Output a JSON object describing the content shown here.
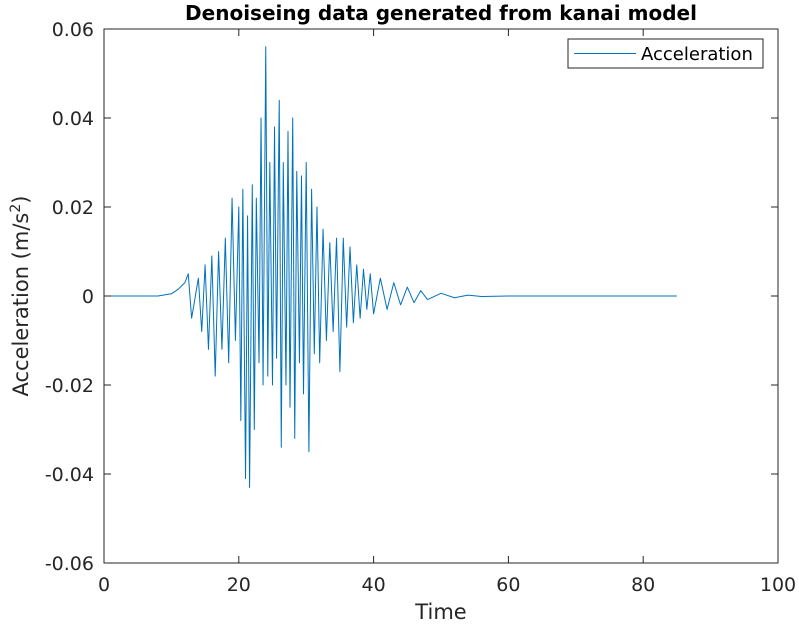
{
  "chart_data": {
    "type": "line",
    "title": "Denoiseing data generated from kanai model",
    "xlabel": "Time",
    "ylabel_main": "Acceleration (m/s",
    "ylabel_sup": "2",
    "ylabel_close": ")",
    "xlim": [
      0,
      100
    ],
    "ylim": [
      -0.06,
      0.06
    ],
    "xticks": [
      0,
      20,
      40,
      60,
      80,
      100
    ],
    "yticks": [
      -0.06,
      -0.04,
      -0.02,
      0,
      0.02,
      0.04,
      0.06
    ],
    "xtick_labels": [
      "0",
      "20",
      "40",
      "60",
      "80",
      "100"
    ],
    "ytick_labels": [
      "-0.06",
      "-0.04",
      "-0.02",
      "0",
      "0.02",
      "0.04",
      "0.06"
    ],
    "grid": false,
    "legend_position": "top-right",
    "series": [
      {
        "name": "Acceleration",
        "color": "#0072BD",
        "x": [
          0,
          8,
          10,
          11,
          12,
          12.5,
          13,
          14,
          14.5,
          15,
          15.5,
          16,
          16.5,
          17,
          17.5,
          18,
          18.5,
          19,
          19.5,
          20,
          20.3,
          20.6,
          21,
          21.3,
          21.6,
          22,
          22.3,
          22.6,
          23,
          23.3,
          23.6,
          24,
          24.3,
          24.6,
          25,
          25.3,
          25.6,
          26,
          26.3,
          26.6,
          27,
          27.3,
          27.6,
          28,
          28.3,
          28.6,
          29,
          29.3,
          29.6,
          30,
          30.4,
          30.8,
          31.2,
          31.6,
          32,
          32.5,
          33,
          33.5,
          34,
          34.5,
          35,
          35.5,
          36,
          36.5,
          37,
          37.5,
          38,
          38.5,
          39,
          39.5,
          40,
          41,
          42,
          43,
          44,
          45,
          46,
          47,
          48,
          50,
          52,
          54,
          56,
          60,
          70,
          85
        ],
        "values": [
          0,
          0,
          0.0005,
          0.0015,
          0.003,
          0.005,
          -0.005,
          0.004,
          -0.008,
          0.007,
          -0.012,
          0.009,
          -0.018,
          0.01,
          -0.012,
          0.013,
          -0.015,
          0.022,
          -0.01,
          0.02,
          -0.028,
          0.024,
          -0.041,
          0.018,
          -0.043,
          0.025,
          -0.03,
          0.022,
          -0.015,
          0.04,
          -0.02,
          0.056,
          -0.018,
          0.03,
          -0.02,
          0.038,
          -0.014,
          0.044,
          -0.034,
          0.03,
          -0.02,
          0.037,
          -0.025,
          0.04,
          -0.032,
          0.028,
          -0.015,
          0.027,
          -0.022,
          0.03,
          -0.035,
          0.024,
          -0.013,
          0.02,
          -0.015,
          0.015,
          -0.01,
          0.012,
          -0.008,
          0.013,
          -0.017,
          0.013,
          -0.007,
          0.011,
          -0.006,
          0.007,
          -0.005,
          0.006,
          -0.003,
          0.005,
          -0.004,
          0.004,
          -0.003,
          0.003,
          -0.002,
          0.002,
          -0.0015,
          0.0012,
          -0.0008,
          0.0006,
          -0.0004,
          0.0002,
          -0.0001,
          0,
          0,
          0
        ]
      }
    ]
  }
}
